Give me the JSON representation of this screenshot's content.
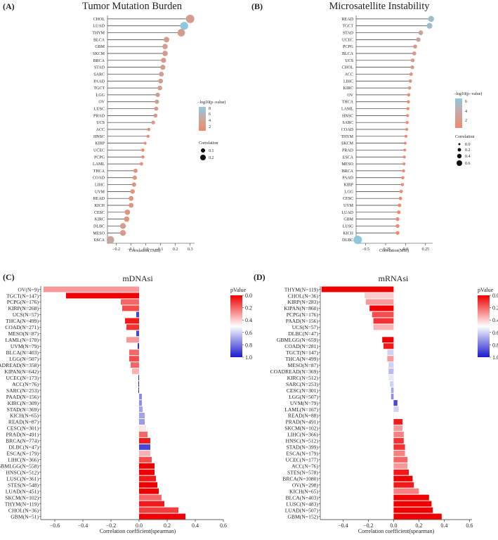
{
  "panels": [
    {
      "tag": "(A)",
      "title": "Tumor Mutation Burden",
      "kind": "lollipop",
      "xlabel": "Correlation(TMB)",
      "legend": {
        "color_title": "−log10(p−value)",
        "color_ticks": [
          "8",
          "6",
          "4",
          "2"
        ],
        "size_title": "Correlation",
        "size_ticks": [
          "0.1",
          "0.2"
        ]
      },
      "colors": {
        "low": "#ee8a6f",
        "high": "#8ec8e0"
      }
    },
    {
      "tag": "(B)",
      "title": "Microsatellite Instability",
      "kind": "lollipop",
      "xlabel": "Correlation(MSI)",
      "legend": {
        "color_title": "−log10(p−value)",
        "color_ticks": [
          "6",
          "4",
          "2"
        ],
        "size_title": "Correlation",
        "size_ticks": [
          "0.0",
          "0.2",
          "0.4",
          "0.6"
        ]
      },
      "colors": {
        "low": "#ee8a6f",
        "high": "#8ec8e0"
      }
    },
    {
      "tag": "(C)",
      "title": "mDNAsi",
      "kind": "bar",
      "xlabel": "Correlation coefficient(spearman)",
      "legend": {
        "title": "pValue",
        "ticks": [
          "0.0",
          "0.2",
          "0.4",
          "0.6",
          "0.8",
          "1.0"
        ]
      },
      "colors": {
        "low": "#ee0000",
        "mid": "#ffffff",
        "high": "#1a1acc"
      }
    },
    {
      "tag": "(D)",
      "title": "mRNAsi",
      "kind": "bar",
      "xlabel": "Correlation coefficient(spearman)",
      "legend": {
        "title": "pValue",
        "ticks": [
          "0.0",
          "0.2",
          "0.4",
          "0.6",
          "0.8",
          "1.0"
        ]
      },
      "colors": {
        "low": "#ee0000",
        "mid": "#ffffff",
        "high": "#1a1acc"
      }
    }
  ],
  "chart_data": [
    {
      "type": "scatter",
      "title": "Tumor Mutation Burden",
      "xlabel": "Correlation(TMB)",
      "ylabel": "",
      "xlim": [
        -0.26,
        0.33
      ],
      "xticks": [
        -0.2,
        -0.1,
        0.0,
        0.1,
        0.2,
        0.3
      ],
      "grid": false,
      "legend": "right",
      "categories": [
        "CHOL",
        "LUAD",
        "THYM",
        "BLCA",
        "GBM",
        "SKCM",
        "BRCA",
        "STAD",
        "SARC",
        "PAAD",
        "TGCT",
        "LGG",
        "OV",
        "LUSC",
        "PRAD",
        "UCS",
        "ACC",
        "HNSC",
        "KIRP",
        "UCEC",
        "PCPG",
        "LAML",
        "THCA",
        "COAD",
        "LIHC",
        "UVM",
        "READ",
        "KICH",
        "CESC",
        "KIRC",
        "DLBC",
        "MESO",
        "ESCA"
      ],
      "values": [
        0.3,
        0.26,
        0.24,
        0.14,
        0.13,
        0.13,
        0.12,
        0.115,
        0.105,
        0.1,
        0.095,
        0.08,
        0.075,
        0.07,
        0.065,
        0.05,
        0.02,
        0.015,
        -0.005,
        -0.02,
        -0.02,
        -0.03,
        -0.07,
        -0.075,
        -0.08,
        -0.09,
        -0.1,
        -0.1,
        -0.125,
        -0.13,
        -0.155,
        -0.155,
        -0.24
      ],
      "neglog10p": [
        3,
        8,
        3,
        3,
        3,
        3,
        3,
        3,
        3,
        3,
        3,
        3,
        3,
        3,
        3,
        3,
        2,
        2,
        1,
        1,
        1,
        1,
        2,
        2,
        2,
        2,
        2,
        2,
        2,
        2,
        3,
        3,
        4
      ]
    },
    {
      "type": "scatter",
      "title": "Microsatellite Instability",
      "xlabel": "Correlation(MSI)",
      "ylabel": "",
      "xlim": [
        -0.62,
        0.34
      ],
      "xticks": [
        -0.5,
        -0.25,
        0.0,
        0.25
      ],
      "grid": false,
      "legend": "right",
      "categories": [
        "READ",
        "TGCT",
        "STAD",
        "UCEC",
        "PCPG",
        "BLCA",
        "UCS",
        "CHOL",
        "ACC",
        "LIHC",
        "KIRC",
        "OV",
        "THCA",
        "LAML",
        "HNSC",
        "SARC",
        "COAD",
        "THYM",
        "SKCM",
        "PRAD",
        "ESCA",
        "MESO",
        "BRCA",
        "PAAD",
        "KIRP",
        "LGG",
        "CESC",
        "UVM",
        "LUAD",
        "GBM",
        "LUSC",
        "KICH",
        "DLBC"
      ],
      "values": [
        0.32,
        0.3,
        0.19,
        0.16,
        0.12,
        0.11,
        0.09,
        0.085,
        0.07,
        0.06,
        0.05,
        0.04,
        0.035,
        0.03,
        0.025,
        0.02,
        0.015,
        0.005,
        -0.005,
        -0.01,
        -0.015,
        -0.02,
        -0.025,
        -0.035,
        -0.04,
        -0.055,
        -0.065,
        -0.075,
        -0.085,
        -0.1,
        -0.1,
        -0.1,
        -0.6
      ],
      "neglog10p": [
        5,
        5,
        3,
        3,
        2,
        2,
        2,
        2,
        2,
        2,
        2,
        1,
        1,
        1,
        1,
        1,
        1,
        1,
        1,
        1,
        1,
        1,
        1,
        1,
        1,
        1,
        1,
        1,
        1,
        1,
        1,
        1,
        6
      ]
    },
    {
      "type": "bar",
      "title": "mDNAsi",
      "xlabel": "Correlation coefficient(spearman)",
      "ylabel": "",
      "xlim": [
        -0.7,
        0.6
      ],
      "xticks": [
        -0.6,
        -0.4,
        -0.2,
        0.0,
        0.2,
        0.4,
        0.6
      ],
      "grid": false,
      "legend": "right",
      "categories": [
        "OV(N=9)",
        "TGCT(N=147)",
        "PCPG(N=176)",
        "KIRP(N=268)",
        "UCS(N=57)",
        "THCA(N=499)",
        "COAD(N=271)",
        "MESO(N=87)",
        "LAML(N=170)",
        "UVM(N=79)",
        "BLCA(N=403)",
        "LGG(N=507)",
        "COADREAD(N=358)",
        "KIPAN(N=642)",
        "UCEC(N=173)",
        "ACC(N=76)",
        "SARC(N=253)",
        "PAAD(N=156)",
        "KIRC(N=309)",
        "STAD(N=369)",
        "KICH(N=65)",
        "READ(N=87)",
        "CESC(N=301)",
        "PRAD(N=491)",
        "BRCA(N=774)",
        "DLBC(N=47)",
        "ESCA(N=179)",
        "LIHC(N=366)",
        "GBMLGG(N=558)",
        "HNSC(N=512)",
        "LUSC(N=361)",
        "STES(N=548)",
        "LUAD(N=451)",
        "SKCM(N=102)",
        "THYM(N=119)",
        "CHOL(N=36)",
        "GBM(N=51)"
      ],
      "values": [
        -0.68,
        -0.52,
        -0.13,
        -0.12,
        -0.02,
        -0.1,
        -0.09,
        -0.02,
        -0.09,
        -0.01,
        -0.07,
        -0.07,
        -0.06,
        -0.05,
        -0.005,
        -0.005,
        -0.005,
        0.02,
        0.02,
        0.025,
        0.04,
        0.04,
        0.05,
        0.06,
        0.08,
        0.08,
        0.08,
        0.09,
        0.11,
        0.11,
        0.12,
        0.13,
        0.14,
        0.16,
        0.18,
        0.28,
        0.33
      ],
      "pvalue": [
        0.3,
        0.0,
        0.2,
        0.15,
        0.9,
        0.05,
        0.1,
        0.9,
        0.3,
        0.95,
        0.2,
        0.15,
        0.2,
        0.35,
        0.95,
        0.97,
        0.93,
        0.75,
        0.75,
        0.7,
        0.7,
        0.72,
        0.45,
        0.2,
        0.05,
        0.9,
        0.35,
        0.15,
        0.0,
        0.0,
        0.05,
        0.0,
        0.0,
        0.2,
        0.05,
        0.12,
        0.0
      ]
    },
    {
      "type": "bar",
      "title": "mRNAsi",
      "xlabel": "Correlation coefficient(spearman)",
      "ylabel": "",
      "xlim": [
        -0.58,
        0.62
      ],
      "xticks": [
        -0.4,
        -0.2,
        0.0,
        0.2,
        0.4,
        0.6
      ],
      "grid": false,
      "legend": "right",
      "categories": [
        "THYM(N=119)",
        "CHOL(N=36)",
        "KIRP(N=283)",
        "KIPAN(N=860)",
        "PCPG(N=176)",
        "PAAD(N=156)",
        "UCS(N=57)",
        "DLBC(N=47)",
        "GBMLGG(N=659)",
        "COAD(N=281)",
        "TGCT(N=147)",
        "THCA(N=499)",
        "MESO(N=87)",
        "COADREAD(N=369)",
        "KIRC(N=512)",
        "SARC(N=253)",
        "CESC(N=301)",
        "LGG(N=507)",
        "UVM(N=79)",
        "LAML(N=167)",
        "READ(N=88)",
        "PRAD(N=491)",
        "SKCM(N=102)",
        "LIHC(N=366)",
        "HNSC(N=512)",
        "STAD(N=399)",
        "ESCA(N=179)",
        "UCEC(N=177)",
        "ACC(N=76)",
        "STES(N=578)",
        "BRCA(N=1080)",
        "OV(N=298)",
        "KICH(N=65)",
        "BLCA(N=403)",
        "LUSC(N=483)",
        "LUAD(N=507)",
        "GBM(N=152)"
      ],
      "values": [
        -0.57,
        -0.23,
        -0.22,
        -0.19,
        -0.17,
        -0.16,
        -0.16,
        -0.13,
        -0.09,
        -0.08,
        -0.05,
        -0.05,
        -0.04,
        -0.04,
        -0.04,
        -0.03,
        -0.02,
        -0.02,
        0.03,
        0.04,
        0.0,
        0.07,
        0.07,
        0.08,
        0.08,
        0.09,
        0.09,
        0.11,
        0.11,
        0.12,
        0.15,
        0.16,
        0.2,
        0.28,
        0.3,
        0.31,
        0.38
      ],
      "pvalue": [
        0.0,
        0.4,
        0.3,
        0.0,
        0.15,
        0.1,
        0.35,
        0.5,
        0.0,
        0.05,
        0.6,
        0.3,
        0.6,
        0.65,
        0.55,
        0.6,
        0.7,
        0.75,
        0.9,
        0.6,
        0.55,
        0.05,
        0.3,
        0.25,
        0.1,
        0.1,
        0.25,
        0.2,
        0.3,
        0.05,
        0.0,
        0.05,
        0.25,
        0.0,
        0.0,
        0.0,
        0.0
      ]
    }
  ]
}
